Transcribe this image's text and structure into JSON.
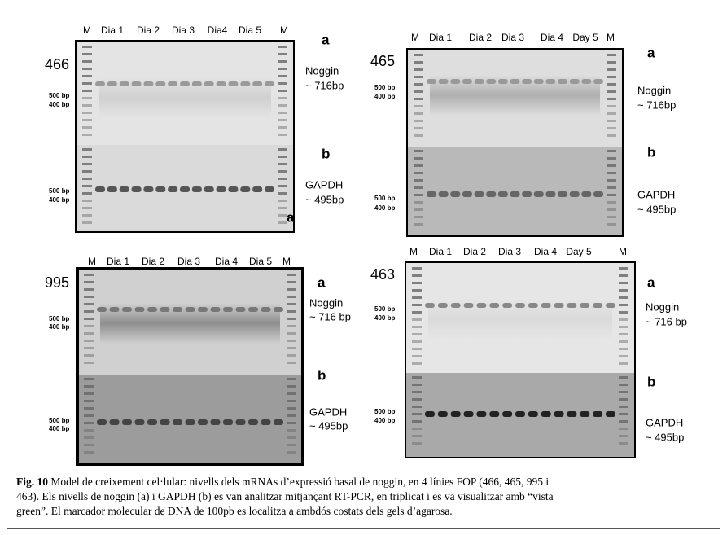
{
  "panels": [
    {
      "line": "466",
      "lanes": [
        "M",
        "Dia 1",
        "Dia 2",
        "Dia 3",
        "Dia4",
        "Dia 5",
        "M"
      ],
      "a_sizes": [
        "500 bp",
        "400 bp"
      ],
      "b_sizes": [
        "500 bp",
        "400 bp"
      ],
      "a_label": "a",
      "a_gene": [
        "Noggin",
        "~ 716bp"
      ],
      "b_label": "b",
      "b_gene": [
        "GAPDH",
        "~ 495bp"
      ],
      "gel_mark": "a"
    },
    {
      "line": "465",
      "lanes": [
        "M",
        "Dia 1",
        "Dia 2",
        "Dia 3",
        "Dia 4",
        "Day 5",
        "M"
      ],
      "a_sizes": [
        "500 bp",
        "400 bp"
      ],
      "b_sizes": [
        "500 bp",
        "400 bp"
      ],
      "a_label": "a",
      "a_gene": [
        "Noggin",
        "~ 716bp"
      ],
      "b_label": "b",
      "b_gene": [
        "GAPDH",
        "~ 495bp"
      ]
    },
    {
      "line": "995",
      "lanes": [
        "M",
        "Dia 1",
        "Dia 2",
        "Dia 3",
        "Dia 4",
        "Dia 5",
        "M"
      ],
      "a_sizes": [
        "500 bp",
        "400 bp"
      ],
      "b_sizes": [
        "500 bp",
        "400 bp"
      ],
      "a_label": "a",
      "a_gene": [
        "Noggin",
        "~ 716 bp"
      ],
      "b_label": "b",
      "b_gene": [
        "GAPDH",
        "~ 495bp"
      ]
    },
    {
      "line": "463",
      "lanes": [
        "M",
        "Dia 1",
        "Dia 2",
        "Dia 3",
        "Dia 4",
        "Day 5",
        "M"
      ],
      "a_sizes": [
        "500 bp",
        "400 bp"
      ],
      "b_sizes": [
        "500 bp",
        "400 bp"
      ],
      "a_label": "a",
      "a_gene": [
        "Noggin",
        "~ 716 bp"
      ],
      "b_label": "b",
      "b_gene": [
        "GAPDH",
        "~ 495bp"
      ]
    }
  ],
  "caption": {
    "label": "Fig. 10",
    "lines": [
      " Model de creixement cel·lular: nivells dels mRNAs d’expressió basal de noggin, en 4 línies FOP (466, 465, 995 i",
      "463). Els nivells de noggin (a) i GAPDH (b) es van analitzar mitjançant RT-PCR, en triplicat i es va visualitzar amb “vista",
      "green”. El marcador molecular de DNA de 100pb es localitza a ambdós costats dels gels d’agarosa."
    ]
  }
}
